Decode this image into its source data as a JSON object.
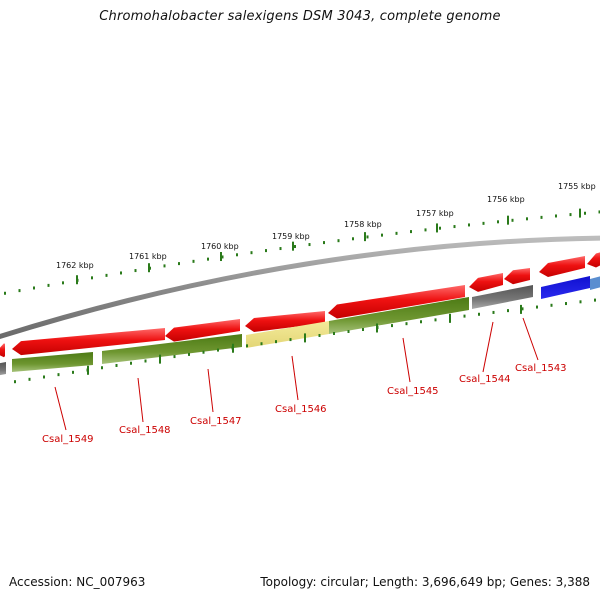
{
  "title": "Chromohalobacter salexigens DSM 3043, complete genome",
  "accession": "Accession: NC_007963",
  "summary": "Topology: circular; Length: 3,696,649 bp; Genes: 3,388",
  "kbp_ticks": [
    {
      "label": "1755 kbp"
    },
    {
      "label": "1756 kbp"
    },
    {
      "label": "1757 kbp"
    },
    {
      "label": "1758 kbp"
    },
    {
      "label": "1759 kbp"
    },
    {
      "label": "1760 kbp"
    },
    {
      "label": "1761 kbp"
    },
    {
      "label": "1762 kbp"
    }
  ],
  "gene_labels": [
    {
      "label": "Csal_1543"
    },
    {
      "label": "Csal_1544"
    },
    {
      "label": "Csal_1545"
    },
    {
      "label": "Csal_1546"
    },
    {
      "label": "Csal_1547"
    },
    {
      "label": "Csal_1548"
    },
    {
      "label": "Csal_1549"
    }
  ],
  "colors": {
    "cds": "#ee1111",
    "feature_green": "#5f8a22",
    "feature_yellow": "#efe48a",
    "feature_gray": "#6c6c6c",
    "feature_blue": "#1c1ce0",
    "backbone": "#8a8a8a",
    "tick": "#2a7a1a",
    "label": "#cc0000"
  }
}
